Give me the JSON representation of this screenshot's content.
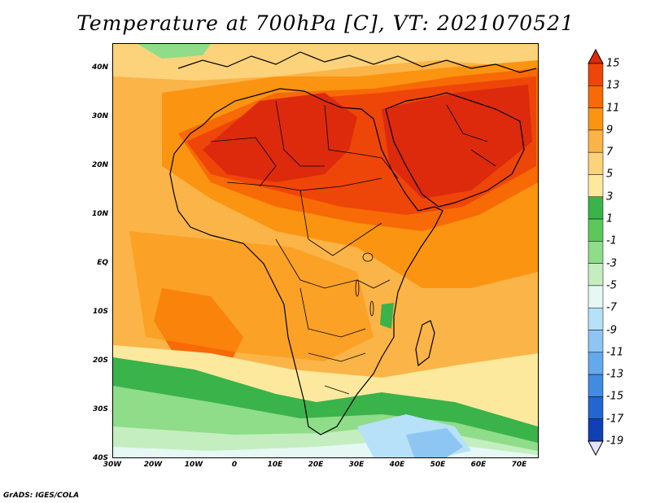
{
  "title": "Temperature at 700hPa [C], VT: 2021070521",
  "credit": "GrADS: IGES/COLA",
  "lat_labels": [
    "40N",
    "30N",
    "20N",
    "10N",
    "EQ",
    "10S",
    "20S",
    "30S",
    "40S"
  ],
  "lon_labels": [
    "30W",
    "20W",
    "10W",
    "0",
    "10E",
    "20E",
    "30E",
    "40E",
    "50E",
    "60E",
    "70E"
  ],
  "colorbar": {
    "labels": [
      "15",
      "13",
      "11",
      "9",
      "7",
      "5",
      "3",
      "1",
      "-1",
      "-3",
      "-5",
      "-7",
      "-9",
      "-11",
      "-13",
      "-15",
      "-17",
      "-19"
    ],
    "colors": [
      "#dd2a0d",
      "#ee4508",
      "#f76a05",
      "#fb9410",
      "#fbb447",
      "#fcd27a",
      "#fce99e",
      "#39b34a",
      "#5cc85c",
      "#8fdc89",
      "#c4eec0",
      "#e6f8f4",
      "#b7e1f8",
      "#8ec6f3",
      "#64a9ec",
      "#418ce1",
      "#2466cf",
      "#1140b3",
      "#0b1e7a"
    ]
  },
  "palette": {
    "hot": "#dd2a0d",
    "very_warm": "#ee4508",
    "warm": "#f76a05",
    "mid": "#fb9410",
    "mild": "#fbb447",
    "cool": "#fcd27a",
    "pale": "#fce99e",
    "green": "#39b34a",
    "light_green": "#8fdc89",
    "pale_green": "#c4eec0",
    "cyan_white": "#e6f8f4",
    "light_blue": "#b7e1f8",
    "blue": "#8ec6f3",
    "border": "#000000"
  }
}
